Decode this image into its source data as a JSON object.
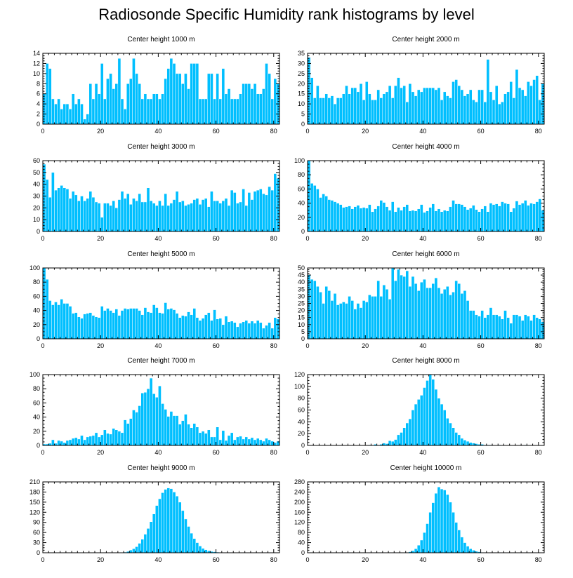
{
  "title": "Radiosonde Specific Humidity rank histograms by level",
  "colors": {
    "bar": "#00bfff",
    "bar_edge": "#ffffff",
    "axis": "#000000"
  },
  "chart_data": [
    {
      "type": "bar",
      "title": "Center height 1000 m",
      "xlim": [
        0,
        82
      ],
      "ylim": [
        0,
        14
      ],
      "xticks": [
        0,
        20,
        40,
        60,
        80
      ],
      "yticks": [
        0,
        2,
        4,
        6,
        8,
        10,
        12,
        14
      ],
      "values": [
        6,
        12,
        11,
        5,
        4,
        5,
        3,
        4,
        4,
        3,
        6,
        4,
        5,
        4,
        1,
        2,
        8,
        5,
        8,
        6,
        12,
        5,
        9,
        10,
        7,
        8,
        13,
        5,
        3,
        8,
        9,
        13,
        10,
        8,
        5,
        6,
        5,
        5,
        6,
        6,
        5,
        6,
        9,
        11,
        13,
        12,
        10,
        10,
        8,
        10,
        7,
        12,
        12,
        12,
        5,
        5,
        5,
        10,
        10,
        5,
        10,
        5,
        11,
        6,
        7,
        5,
        5,
        5,
        6,
        8,
        8,
        8,
        7,
        8,
        6,
        6,
        7,
        12,
        10,
        5,
        9,
        8
      ]
    },
    {
      "type": "bar",
      "title": "Center height 2000 m",
      "xlim": [
        0,
        82
      ],
      "ylim": [
        0,
        35
      ],
      "xticks": [
        0,
        20,
        40,
        60,
        80
      ],
      "yticks": [
        0,
        5,
        10,
        15,
        20,
        25,
        30,
        35
      ],
      "values": [
        33,
        23,
        13,
        19,
        13,
        13,
        15,
        13,
        14,
        10,
        13,
        13,
        15,
        19,
        15,
        18,
        18,
        16,
        20,
        12,
        21,
        15,
        12,
        12,
        17,
        13,
        15,
        16,
        19,
        13,
        19,
        23,
        18,
        19,
        11,
        20,
        16,
        14,
        17,
        16,
        18,
        18,
        18,
        18,
        17,
        18,
        12,
        16,
        14,
        13,
        21,
        22,
        19,
        17,
        14,
        15,
        17,
        12,
        11,
        17,
        17,
        11,
        32,
        16,
        12,
        19,
        10,
        11,
        15,
        16,
        21,
        13,
        27,
        18,
        17,
        14,
        21,
        19,
        22,
        24,
        12,
        20
      ]
    },
    {
      "type": "bar",
      "title": "Center height 3000 m",
      "xlim": [
        0,
        82
      ],
      "ylim": [
        0,
        60
      ],
      "xticks": [
        0,
        20,
        40,
        60,
        80
      ],
      "yticks": [
        0,
        10,
        20,
        30,
        40,
        50,
        60
      ],
      "values": [
        57,
        44,
        29,
        50,
        35,
        37,
        39,
        37,
        36,
        28,
        34,
        31,
        26,
        30,
        26,
        28,
        34,
        29,
        25,
        24,
        12,
        24,
        24,
        22,
        26,
        20,
        27,
        34,
        28,
        32,
        23,
        28,
        26,
        32,
        25,
        25,
        37,
        26,
        24,
        22,
        26,
        22,
        32,
        22,
        24,
        27,
        34,
        25,
        26,
        22,
        23,
        24,
        27,
        28,
        23,
        27,
        28,
        21,
        34,
        26,
        26,
        24,
        26,
        28,
        22,
        35,
        33,
        24,
        25,
        36,
        22,
        33,
        27,
        34,
        35,
        36,
        32,
        31,
        38,
        35,
        49,
        45
      ]
    },
    {
      "type": "bar",
      "title": "Center height 4000 m",
      "xlim": [
        0,
        82
      ],
      "ylim": [
        0,
        100
      ],
      "xticks": [
        0,
        20,
        40,
        60,
        80
      ],
      "yticks": [
        0,
        20,
        40,
        60,
        80,
        100
      ],
      "values": [
        100,
        68,
        65,
        60,
        48,
        53,
        50,
        45,
        44,
        42,
        40,
        38,
        34,
        35,
        36,
        32,
        35,
        37,
        33,
        34,
        33,
        38,
        28,
        32,
        36,
        44,
        41,
        35,
        30,
        42,
        28,
        34,
        30,
        35,
        38,
        29,
        30,
        29,
        32,
        38,
        27,
        29,
        34,
        39,
        29,
        32,
        28,
        30,
        29,
        35,
        44,
        39,
        39,
        38,
        35,
        31,
        33,
        37,
        31,
        28,
        32,
        36,
        28,
        40,
        38,
        39,
        36,
        42,
        40,
        39,
        28,
        33,
        43,
        38,
        40,
        44,
        37,
        40,
        39,
        42,
        46,
        30
      ]
    },
    {
      "type": "bar",
      "title": "Center height 5000 m",
      "xlim": [
        0,
        82
      ],
      "ylim": [
        0,
        100
      ],
      "xticks": [
        0,
        20,
        40,
        60,
        80
      ],
      "yticks": [
        0,
        20,
        40,
        60,
        80,
        100
      ],
      "values": [
        100,
        84,
        54,
        48,
        52,
        48,
        56,
        50,
        50,
        46,
        36,
        37,
        31,
        29,
        35,
        36,
        37,
        33,
        31,
        30,
        46,
        40,
        43,
        40,
        37,
        42,
        33,
        40,
        43,
        42,
        43,
        43,
        43,
        40,
        34,
        44,
        38,
        37,
        48,
        44,
        37,
        36,
        51,
        42,
        43,
        41,
        36,
        30,
        33,
        32,
        38,
        34,
        43,
        30,
        26,
        29,
        34,
        37,
        26,
        41,
        28,
        29,
        20,
        32,
        24,
        25,
        23,
        17,
        22,
        24,
        26,
        22,
        25,
        22,
        26,
        23,
        15,
        19,
        23,
        15,
        30,
        28
      ]
    },
    {
      "type": "bar",
      "title": "Center height 6000 m",
      "xlim": [
        0,
        82
      ],
      "ylim": [
        0,
        50
      ],
      "xticks": [
        0,
        20,
        40,
        60,
        80
      ],
      "yticks": [
        0,
        5,
        10,
        15,
        20,
        25,
        30,
        35,
        40,
        45,
        50
      ],
      "values": [
        45,
        42,
        41,
        37,
        33,
        25,
        37,
        34,
        27,
        32,
        24,
        25,
        26,
        25,
        30,
        27,
        21,
        25,
        22,
        27,
        26,
        31,
        30,
        30,
        41,
        30,
        38,
        35,
        28,
        50,
        41,
        49,
        45,
        44,
        48,
        37,
        44,
        39,
        34,
        40,
        42,
        36,
        36,
        39,
        43,
        36,
        32,
        35,
        37,
        31,
        33,
        41,
        39,
        32,
        34,
        27,
        20,
        20,
        17,
        16,
        20,
        15,
        17,
        22,
        17,
        17,
        16,
        14,
        20,
        15,
        11,
        17,
        17,
        16,
        13,
        17,
        16,
        13,
        17,
        15,
        14,
        12
      ]
    },
    {
      "type": "bar",
      "title": "Center height 7000 m",
      "xlim": [
        0,
        82
      ],
      "ylim": [
        0,
        100
      ],
      "xticks": [
        0,
        20,
        40,
        60,
        80
      ],
      "yticks": [
        0,
        20,
        40,
        60,
        80,
        100
      ],
      "values": [
        2,
        2,
        3,
        8,
        3,
        7,
        6,
        4,
        7,
        8,
        10,
        11,
        9,
        14,
        8,
        12,
        13,
        14,
        18,
        12,
        15,
        22,
        17,
        16,
        24,
        22,
        20,
        18,
        36,
        31,
        38,
        50,
        47,
        56,
        74,
        75,
        80,
        95,
        73,
        68,
        84,
        59,
        51,
        41,
        48,
        42,
        42,
        30,
        35,
        44,
        30,
        25,
        31,
        26,
        18,
        20,
        17,
        22,
        12,
        12,
        26,
        8,
        21,
        7,
        14,
        18,
        8,
        12,
        13,
        9,
        12,
        9,
        11,
        8,
        10,
        8,
        6,
        10,
        8,
        6,
        4,
        6
      ]
    },
    {
      "type": "bar",
      "title": "Center height 8000 m",
      "xlim": [
        0,
        82
      ],
      "ylim": [
        0,
        120
      ],
      "xticks": [
        0,
        20,
        40,
        60,
        80
      ],
      "yticks": [
        0,
        20,
        40,
        60,
        80,
        100,
        120
      ],
      "values": [
        0,
        0,
        0,
        0,
        0,
        0,
        0,
        0,
        0,
        0,
        0,
        0,
        0,
        0,
        0,
        0,
        0,
        0,
        0,
        0,
        0,
        1,
        0,
        2,
        1,
        2,
        4,
        3,
        8,
        7,
        10,
        18,
        22,
        30,
        38,
        45,
        60,
        70,
        78,
        85,
        98,
        110,
        120,
        112,
        95,
        80,
        70,
        60,
        46,
        38,
        30,
        22,
        18,
        12,
        9,
        7,
        5,
        4,
        3,
        2,
        2,
        1,
        1,
        1,
        0,
        0,
        1,
        0,
        0,
        0,
        0,
        0,
        0,
        0,
        0,
        1,
        0,
        0,
        0,
        0,
        0,
        0
      ]
    },
    {
      "type": "bar",
      "title": "Center height 9000 m",
      "xlim": [
        0,
        82
      ],
      "ylim": [
        0,
        210
      ],
      "xticks": [
        0,
        20,
        40,
        60,
        80
      ],
      "yticks": [
        0,
        30,
        60,
        90,
        120,
        150,
        180,
        210
      ],
      "values": [
        0,
        0,
        0,
        0,
        0,
        0,
        0,
        0,
        0,
        0,
        0,
        0,
        0,
        0,
        0,
        0,
        0,
        0,
        0,
        0,
        0,
        0,
        0,
        0,
        0,
        0,
        0,
        1,
        2,
        4,
        8,
        12,
        18,
        28,
        40,
        55,
        72,
        92,
        115,
        140,
        160,
        178,
        188,
        192,
        190,
        180,
        168,
        150,
        125,
        100,
        78,
        58,
        42,
        30,
        20,
        13,
        9,
        6,
        4,
        3,
        2,
        1,
        1,
        0,
        0,
        0,
        0,
        0,
        0,
        0,
        0,
        0,
        0,
        0,
        0,
        0,
        0,
        0,
        0,
        0,
        0,
        0
      ]
    },
    {
      "type": "bar",
      "title": "Center height 10000 m",
      "xlim": [
        0,
        82
      ],
      "ylim": [
        0,
        280
      ],
      "xticks": [
        0,
        20,
        40,
        60,
        80
      ],
      "yticks": [
        0,
        40,
        80,
        120,
        160,
        200,
        240,
        280
      ],
      "values": [
        0,
        0,
        0,
        0,
        0,
        0,
        0,
        0,
        0,
        0,
        0,
        0,
        0,
        0,
        0,
        0,
        0,
        0,
        0,
        0,
        0,
        0,
        0,
        0,
        0,
        0,
        0,
        0,
        0,
        0,
        0,
        0,
        0,
        0,
        2,
        4,
        8,
        16,
        30,
        50,
        80,
        115,
        160,
        198,
        235,
        260,
        252,
        248,
        230,
        200,
        160,
        120,
        90,
        62,
        40,
        26,
        16,
        10,
        6,
        4,
        2,
        1,
        0,
        0,
        0,
        0,
        0,
        0,
        0,
        0,
        0,
        0,
        0,
        0,
        0,
        0,
        0,
        0,
        0,
        0,
        0,
        0
      ]
    }
  ]
}
